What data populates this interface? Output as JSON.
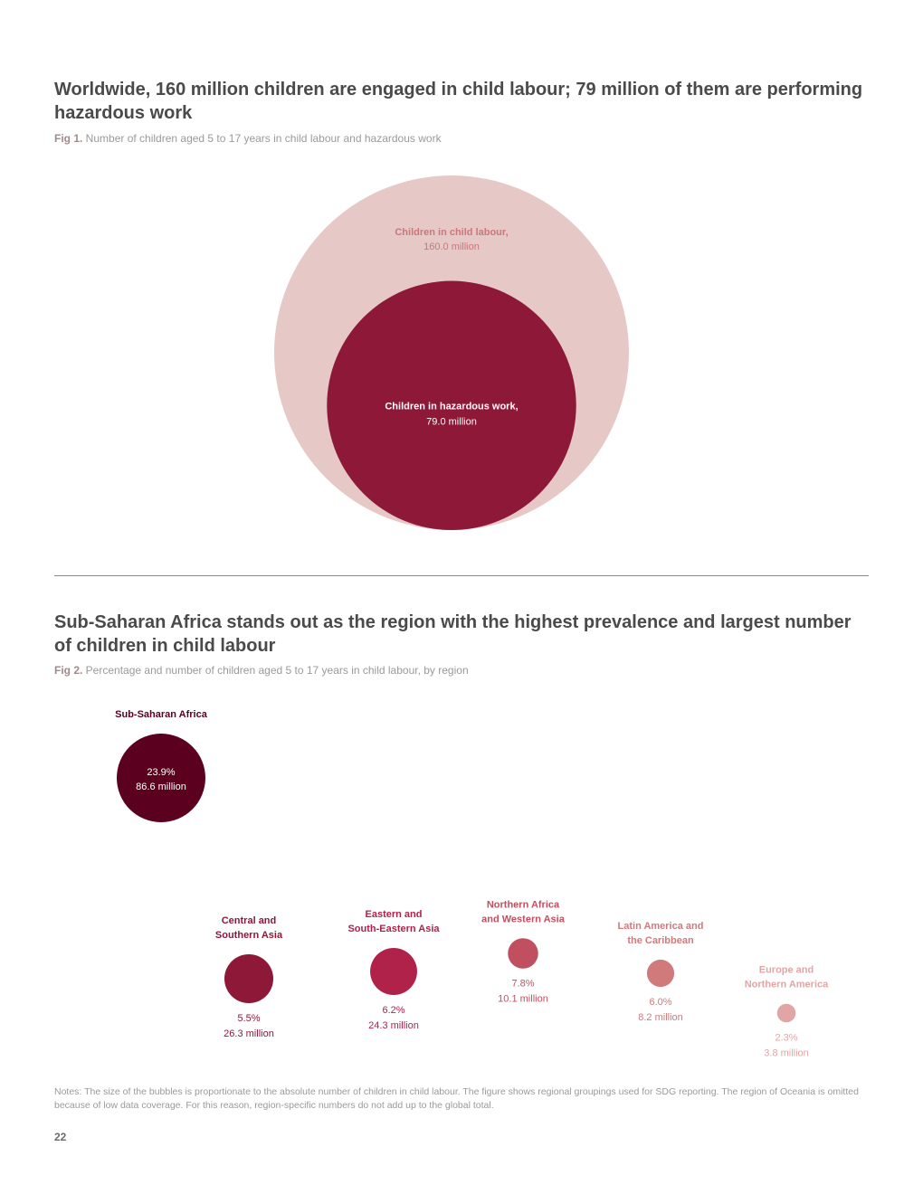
{
  "section1": {
    "heading": "Worldwide, 160 million children are engaged in child labour; 79 million of them are performing hazardous work",
    "fig_label": "Fig 1.",
    "fig_caption": " Number of children aged 5 to 17 years in child labour and hazardous work"
  },
  "section2": {
    "heading": "Sub-Saharan Africa stands out as the region with the highest prevalence and largest number of children in child labour",
    "fig_label": "Fig 2.",
    "fig_caption": " Percentage and number of children aged 5 to 17 years in child labour, by region"
  },
  "notes": "Notes: The size of the bubbles is proportionate to the absolute number of children in child labour. The figure shows regional groupings used for SDG reporting. The region of Oceania is omitted because of low data coverage. For this reason, region-specific numbers do not add up to the global total.",
  "page_number": "22",
  "chart_data": [
    {
      "type": "bubble",
      "bubbles": [
        {
          "label": "Children in child labour,",
          "value_text": "160.0 million",
          "value": 160.0,
          "color": "#e6c8c7",
          "text_color": "#c9787c"
        },
        {
          "label": "Children in hazardous work,",
          "value_text": "79.0 million",
          "value": 79.0,
          "color": "#8e1838",
          "text_color": "#ffffff"
        }
      ]
    },
    {
      "type": "bubble",
      "regions": [
        {
          "name_lines": [
            "Sub-Saharan Africa"
          ],
          "percent": 23.9,
          "percent_text": "23.9%",
          "millions": 86.6,
          "millions_text": "86.6 million",
          "color": "#5c0020",
          "label_color": "#5c0020",
          "value_color": "#ffffff",
          "values_inside": true
        },
        {
          "name_lines": [
            "Central and",
            "Southern Asia"
          ],
          "percent": 5.5,
          "percent_text": "5.5%",
          "millions": 26.3,
          "millions_text": "26.3 million",
          "color": "#8e1838",
          "label_color": "#8e1838",
          "value_color": "#8e1838",
          "values_inside": false
        },
        {
          "name_lines": [
            "Eastern and",
            "South-Eastern Asia"
          ],
          "percent": 6.2,
          "percent_text": "6.2%",
          "millions": 24.3,
          "millions_text": "24.3 million",
          "color": "#b0224a",
          "label_color": "#b0224a",
          "value_color": "#b0224a",
          "values_inside": false
        },
        {
          "name_lines": [
            "Northern Africa",
            "and Western Asia"
          ],
          "percent": 7.8,
          "percent_text": "7.8%",
          "millions": 10.1,
          "millions_text": "10.1 million",
          "color": "#c0505f",
          "label_color": "#c0505f",
          "value_color": "#c0505f",
          "values_inside": false
        },
        {
          "name_lines": [
            "Latin America and",
            "the Caribbean"
          ],
          "percent": 6.0,
          "percent_text": "6.0%",
          "millions": 8.2,
          "millions_text": "8.2 million",
          "color": "#d07a7c",
          "label_color": "#d07a7c",
          "value_color": "#d07a7c",
          "values_inside": false
        },
        {
          "name_lines": [
            "Europe and",
            "Northern America"
          ],
          "percent": 2.3,
          "percent_text": "2.3%",
          "millions": 3.8,
          "millions_text": "3.8 million",
          "color": "#e0a6a6",
          "label_color": "#e0a6a6",
          "value_color": "#e0a6a6",
          "values_inside": false
        }
      ]
    }
  ]
}
